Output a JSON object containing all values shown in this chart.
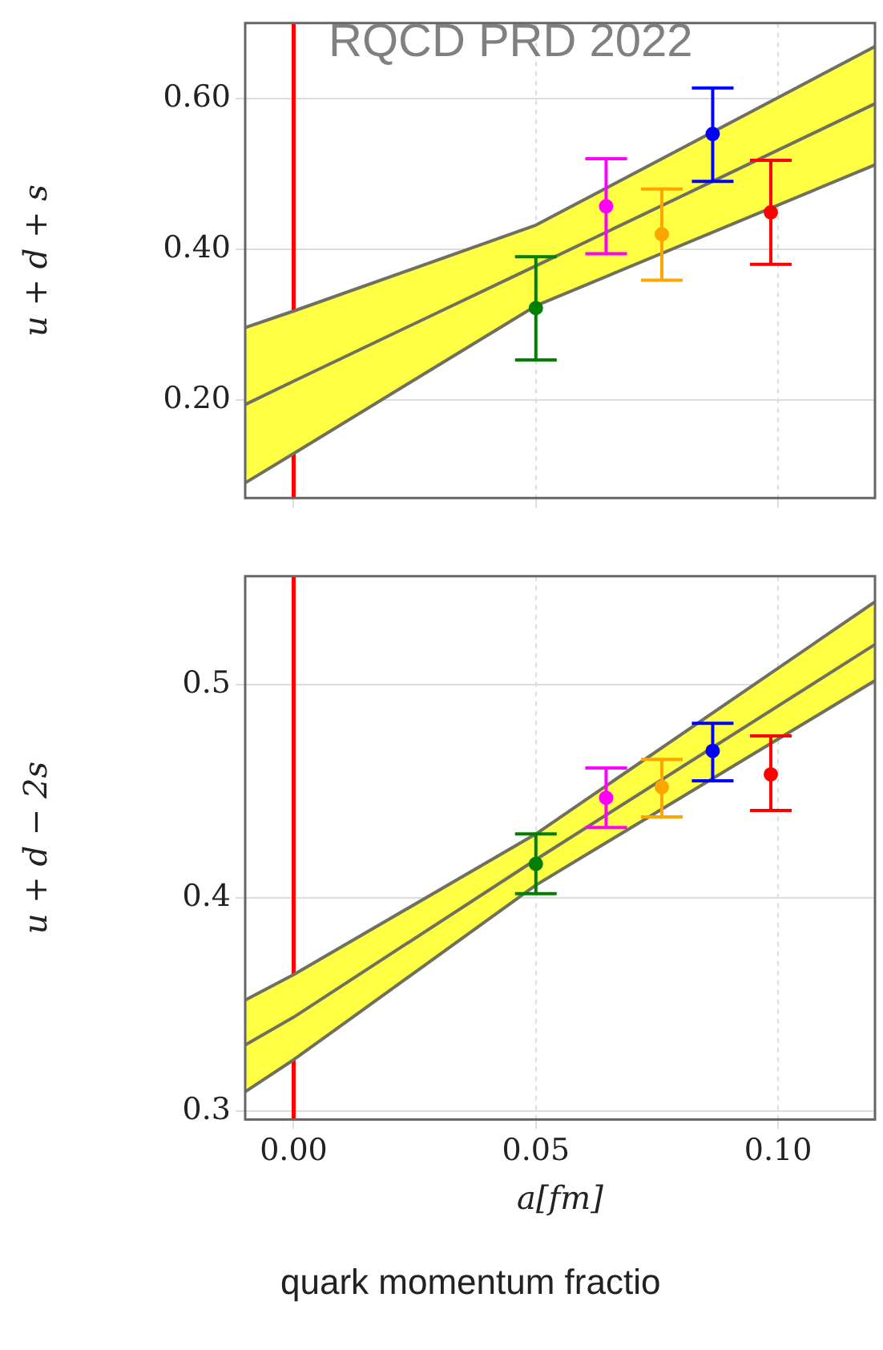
{
  "chart_data": [
    {
      "type": "scatter",
      "ylabel": "u + d + s",
      "annotations": [
        "RQCD PRD 2022"
      ],
      "xlim": [
        -0.01,
        0.12
      ],
      "ylim": [
        0.07,
        0.7
      ],
      "xticks": [
        0,
        0.05,
        0.1
      ],
      "yticks": [
        {
          "value": 0.2,
          "label": "0.20"
        },
        {
          "value": 0.4,
          "label": "0.40"
        },
        {
          "value": 0.6,
          "label": "0.60"
        }
      ],
      "tick_labels": "y",
      "grid": true,
      "series": [
        {
          "type": "line",
          "color": "#707060",
          "x": [
            -0.01,
            0,
            0.05,
            0.12
          ],
          "values": [
            0.194,
            0.225,
            0.378,
            0.593
          ],
          "lower": [
            0.09,
            0.129,
            0.325,
            0.512
          ],
          "upper": [
            0.296,
            0.318,
            0.432,
            0.669
          ]
        },
        {
          "type": "line",
          "color": "#707060",
          "x": [
            -0.01,
            0,
            0.05,
            0.12
          ],
          "values": [
            0.296,
            0.318,
            0.432,
            0.669
          ]
        },
        {
          "type": "line",
          "color": "#707060",
          "x": [
            -0.01,
            0,
            0.05,
            0.12
          ],
          "values": [
            0.09,
            0.129,
            0.325,
            0.512
          ]
        },
        {
          "type": "scatter",
          "marker": "circle",
          "x": [
            0.05,
            0.0645,
            0.076,
            0.0865,
            0.0985
          ],
          "values": [
            0.322,
            0.457,
            0.42,
            0.553,
            0.449
          ],
          "colors": [
            "#008000",
            "#ff00ff",
            "#ffa500",
            "#0000ff",
            "#ff0000"
          ],
          "errors": [
            [
              0.253,
              0.39
            ],
            [
              0.394,
              0.52
            ],
            [
              0.359,
              0.48
            ],
            [
              0.49,
              0.614
            ],
            [
              0.38,
              0.518
            ]
          ]
        }
      ],
      "ref_lines": [
        {
          "axis": "x",
          "value": 0,
          "color": "#ff0000"
        }
      ]
    },
    {
      "type": "scatter",
      "xlabel": "a[fm]",
      "ylabel": "u + d − 2s",
      "annotations": [
        "quark momentum fractio"
      ],
      "xlim": [
        -0.01,
        0.12
      ],
      "ylim": [
        0.296,
        0.551
      ],
      "xticks": [
        {
          "value": 0,
          "label": "0.00"
        },
        {
          "value": 0.05,
          "label": "0.05"
        },
        {
          "value": 0.1,
          "label": "0.10"
        }
      ],
      "yticks": [
        0.3,
        0.4,
        0.5
      ],
      "grid": true,
      "series": [
        {
          "type": "line",
          "color": "#707060",
          "x": [
            -0.01,
            0,
            0.05,
            0.12
          ],
          "values": [
            0.331,
            0.344,
            0.418,
            0.519
          ],
          "lower": [
            0.309,
            0.324,
            0.406,
            0.502
          ],
          "upper": [
            0.352,
            0.364,
            0.43,
            0.539
          ]
        },
        {
          "type": "line",
          "color": "#707060",
          "x": [
            -0.01,
            0,
            0.05,
            0.12
          ],
          "values": [
            0.352,
            0.364,
            0.43,
            0.539
          ]
        },
        {
          "type": "line",
          "color": "#707060",
          "x": [
            -0.01,
            0,
            0.05,
            0.12
          ],
          "values": [
            0.309,
            0.324,
            0.406,
            0.502
          ]
        },
        {
          "type": "scatter",
          "marker": "circle",
          "x": [
            0.05,
            0.0645,
            0.076,
            0.0865,
            0.0985
          ],
          "values": [
            0.416,
            0.447,
            0.452,
            0.469,
            0.458
          ],
          "colors": [
            "#008000",
            "#ff00ff",
            "#ffa500",
            "#0000ff",
            "#ff0000"
          ],
          "errors": [
            [
              0.402,
              0.43
            ],
            [
              0.433,
              0.461
            ],
            [
              0.438,
              0.465
            ],
            [
              0.455,
              0.482
            ],
            [
              0.441,
              0.476
            ]
          ]
        }
      ],
      "ref_lines": [
        {
          "axis": "x",
          "value": 0,
          "color": "#ff0000"
        }
      ]
    }
  ]
}
